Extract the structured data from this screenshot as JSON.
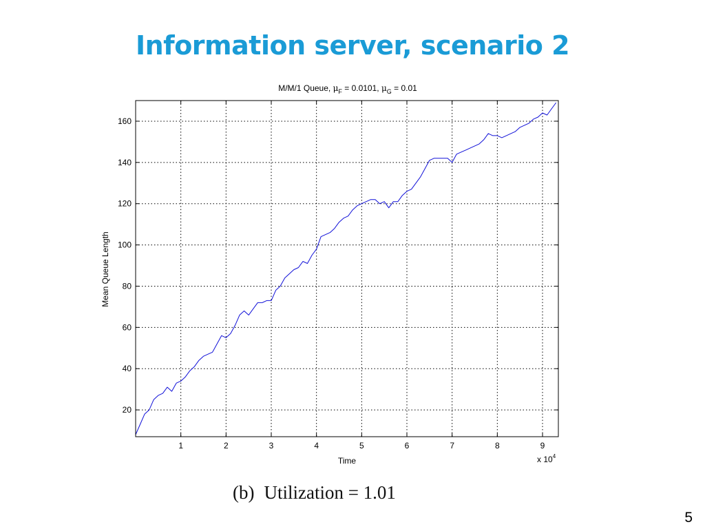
{
  "slide": {
    "title": "Information server, scenario 2",
    "caption_label": "(b)",
    "caption_text": "Utilization = 1.01",
    "slide_number": "5"
  },
  "chart_data": {
    "type": "line",
    "title_parts": {
      "main": "M/M/1 Queue, ",
      "mu": "μ",
      "sub_f": "F",
      "eq_f": " = 0.0101, ",
      "sub_g": "G",
      "eq_g": " = 0.01"
    },
    "xlabel": "Time",
    "ylabel": "Mean Queue Length",
    "x_multiplier_label": "x 10",
    "x_multiplier_exp": "4",
    "xlim": [
      0,
      9.35
    ],
    "ylim": [
      7,
      170
    ],
    "xticks": [
      1,
      2,
      3,
      4,
      5,
      6,
      7,
      8,
      9
    ],
    "yticks": [
      20,
      40,
      60,
      80,
      100,
      120,
      140,
      160
    ],
    "grid": true,
    "line_color": "#1010d8",
    "series": [
      {
        "x": [
          0,
          0.1,
          0.2,
          0.3,
          0.4,
          0.5,
          0.6,
          0.7,
          0.8,
          0.9,
          1.0,
          1.1,
          1.2,
          1.3,
          1.4,
          1.5,
          1.6,
          1.7,
          1.8,
          1.9,
          2.0,
          2.1,
          2.2,
          2.3,
          2.4,
          2.5,
          2.6,
          2.7,
          2.8,
          2.9,
          3.0,
          3.1,
          3.2,
          3.3,
          3.4,
          3.5,
          3.6,
          3.7,
          3.8,
          3.9,
          4.0,
          4.1,
          4.2,
          4.3,
          4.4,
          4.5,
          4.6,
          4.7,
          4.8,
          4.9,
          5.0,
          5.1,
          5.2,
          5.3,
          5.4,
          5.5,
          5.6,
          5.7,
          5.8,
          5.9,
          6.0,
          6.1,
          6.2,
          6.3,
          6.4,
          6.5,
          6.6,
          6.7,
          6.8,
          6.9,
          7.0,
          7.1,
          7.2,
          7.3,
          7.4,
          7.5,
          7.6,
          7.7,
          7.8,
          7.9,
          8.0,
          8.1,
          8.2,
          8.3,
          8.4,
          8.5,
          8.6,
          8.7,
          8.8,
          8.9,
          9.0,
          9.1,
          9.2,
          9.3
        ],
        "y": [
          8,
          13,
          18,
          20,
          25,
          27,
          28,
          31,
          29,
          33,
          34,
          36,
          39,
          41,
          44,
          46,
          47,
          48,
          52,
          56,
          55,
          57,
          61,
          66,
          68,
          66,
          69,
          72,
          72,
          73,
          73,
          78,
          80,
          84,
          86,
          88,
          89,
          92,
          91,
          95,
          98,
          104,
          105,
          106,
          108,
          111,
          113,
          114,
          117,
          119,
          120,
          121,
          122,
          122,
          120,
          121,
          118,
          121,
          121,
          124,
          126,
          127,
          130,
          133,
          137,
          141,
          142,
          142,
          142,
          142,
          140,
          144,
          145,
          146,
          147,
          148,
          149,
          151,
          154,
          153,
          153,
          152,
          153,
          154,
          155,
          157,
          158,
          159,
          161,
          162,
          164,
          163,
          166,
          169
        ]
      }
    ]
  }
}
